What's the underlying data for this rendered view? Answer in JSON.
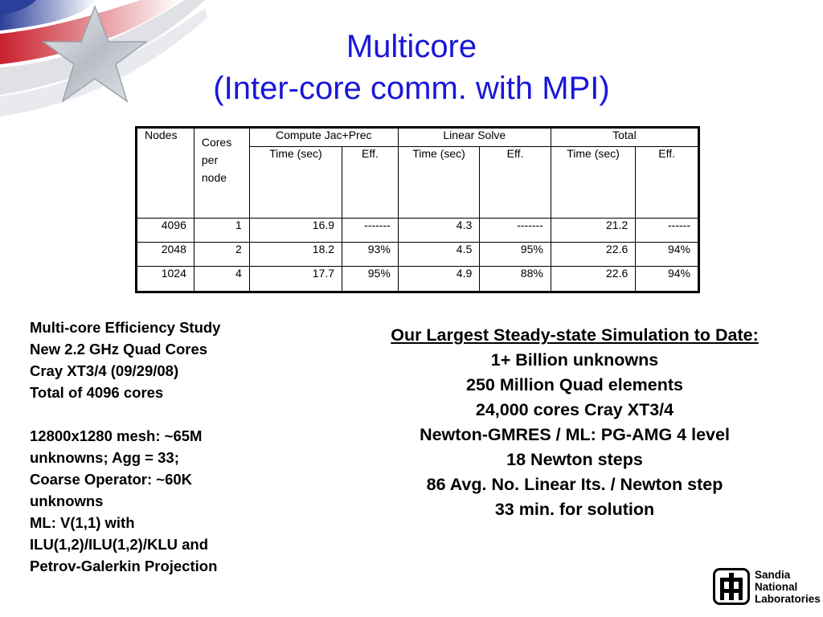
{
  "title": {
    "line1": "Multicore",
    "line2": "(Inter-core comm. with MPI)"
  },
  "table": {
    "headers": {
      "nodes": "Nodes",
      "cores_per_node": [
        "Cores",
        "per",
        "node"
      ],
      "compute": "Compute Jac+Prec",
      "linear": "Linear Solve",
      "total": "Total",
      "time": "Time (sec)",
      "eff": "Eff."
    },
    "rows": [
      {
        "nodes": "4096",
        "cores": "1",
        "compute_time": "16.9",
        "compute_eff": "-------",
        "linear_time": "4.3",
        "linear_eff": "-------",
        "total_time": "21.2",
        "total_eff": "------"
      },
      {
        "nodes": "2048",
        "cores": "2",
        "compute_time": "18.2",
        "compute_eff": "93%",
        "linear_time": "4.5",
        "linear_eff": "95%",
        "total_time": "22.6",
        "total_eff": "94%"
      },
      {
        "nodes": "1024",
        "cores": "4",
        "compute_time": "17.7",
        "compute_eff": "95%",
        "linear_time": "4.9",
        "linear_eff": "88%",
        "total_time": "22.6",
        "total_eff": "94%"
      }
    ]
  },
  "left_block": {
    "lines1": [
      "Multi-core Efficiency Study",
      "New 2.2 GHz Quad Cores",
      "Cray XT3/4 (09/29/08)",
      "Total of 4096 cores"
    ],
    "lines2": [
      "12800x1280 mesh: ~65M",
      "unknowns; Agg = 33;",
      "Coarse Operator: ~60K",
      "unknowns",
      "ML: V(1,1) with",
      "ILU(1,2)/ILU(1,2)/KLU and",
      "Petrov-Galerkin Projection"
    ]
  },
  "right_block": {
    "heading": "Our Largest Steady-state Simulation to Date:",
    "lines": [
      "1+ Billion unknowns",
      "250 Million Quad elements",
      "24,000 cores Cray XT3/4",
      "Newton-GMRES / ML: PG-AMG 4 level",
      "18 Newton steps",
      "86 Avg. No. Linear Its. / Newton step",
      "33 min. for solution"
    ]
  },
  "logo": {
    "lines": [
      "Sandia",
      "National",
      "Laboratories"
    ],
    "icon": "sandia-thunderbird-icon"
  },
  "decoration": {
    "icon": "star-flag-icon",
    "colors": {
      "red": "#c8202c",
      "blue": "#2a3f9a",
      "silver": "#c9ccd3"
    }
  },
  "colors": {
    "title": "#1a16d8"
  }
}
